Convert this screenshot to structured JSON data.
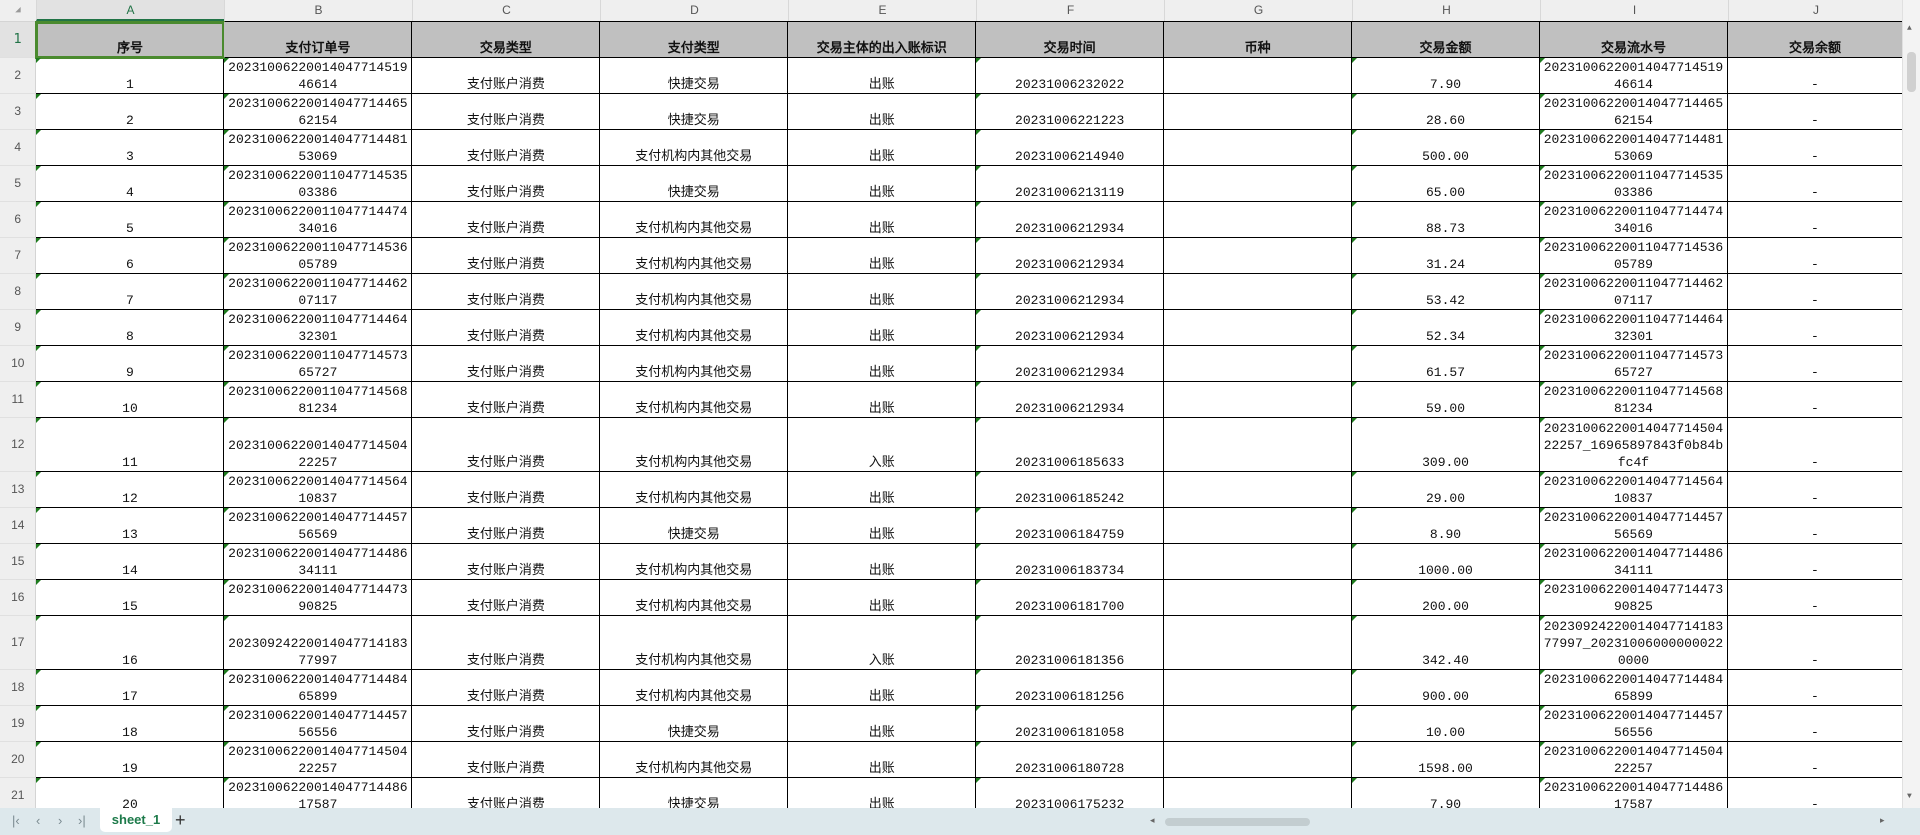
{
  "column_letters": [
    "A",
    "B",
    "C",
    "D",
    "E",
    "F",
    "G",
    "H",
    "I",
    "J"
  ],
  "row_numbers": [
    "1",
    "2",
    "3",
    "4",
    "5",
    "6",
    "7",
    "8",
    "9",
    "10",
    "11",
    "12",
    "13",
    "14",
    "15",
    "16",
    "17",
    "18",
    "19",
    "20",
    "21"
  ],
  "headers": [
    "序号",
    "支付订单号",
    "交易类型",
    "支付类型",
    "交易主体的出入账标识",
    "交易时间",
    "币种",
    "交易金额",
    "交易流水号",
    "交易余额"
  ],
  "rows": [
    [
      "1",
      "20231006220014047714519 46614",
      "支付账户消费",
      "快捷交易",
      "出账",
      "20231006232022",
      "",
      "7.90",
      "2023100622001404771451946614",
      "-"
    ],
    [
      "2",
      "2023100622001404771446562154",
      "支付账户消费",
      "快捷交易",
      "出账",
      "20231006221223",
      "",
      "28.60",
      "2023100622001404771446562154",
      "-"
    ],
    [
      "3",
      "2023100622001404771448153069",
      "支付账户消费",
      "支付机构内其他交易",
      "出账",
      "20231006214940",
      "",
      "500.00",
      "2023100622001404771448153069",
      "-"
    ],
    [
      "4",
      "2023100622001104771453503386",
      "支付账户消费",
      "快捷交易",
      "出账",
      "20231006213119",
      "",
      "65.00",
      "2023100622001104771453503386",
      "-"
    ],
    [
      "5",
      "2023100622001104771447434016",
      "支付账户消费",
      "支付机构内其他交易",
      "出账",
      "20231006212934",
      "",
      "88.73",
      "2023100622001104771447434016",
      "-"
    ],
    [
      "6",
      "2023100622001104771453605789",
      "支付账户消费",
      "支付机构内其他交易",
      "出账",
      "20231006212934",
      "",
      "31.24",
      "2023100622001104771453605789",
      "-"
    ],
    [
      "7",
      "2023100622001104771446207117",
      "支付账户消费",
      "支付机构内其他交易",
      "出账",
      "20231006212934",
      "",
      "53.42",
      "2023100622001104771446207117",
      "-"
    ],
    [
      "8",
      "2023100622001104771446432301",
      "支付账户消费",
      "支付机构内其他交易",
      "出账",
      "20231006212934",
      "",
      "52.34",
      "2023100622001104771446432301",
      "-"
    ],
    [
      "9",
      "2023100622001104771457365727",
      "支付账户消费",
      "支付机构内其他交易",
      "出账",
      "20231006212934",
      "",
      "61.57",
      "2023100622001104771457365727",
      "-"
    ],
    [
      "10",
      "2023100622001104771456881234",
      "支付账户消费",
      "支付机构内其他交易",
      "出账",
      "20231006212934",
      "",
      "59.00",
      "2023100622001104771456881234",
      "-"
    ],
    [
      "11",
      "2023100622001404771450422257",
      "支付账户消费",
      "支付机构内其他交易",
      "入账",
      "20231006185633",
      "",
      "309.00",
      "2023100622001404771450422257_16965897843f0b84bfc4f",
      "-"
    ],
    [
      "12",
      "2023100622001404771456410837",
      "支付账户消费",
      "支付机构内其他交易",
      "出账",
      "20231006185242",
      "",
      "29.00",
      "2023100622001404771456410837",
      "-"
    ],
    [
      "13",
      "2023100622001404771445756569",
      "支付账户消费",
      "快捷交易",
      "出账",
      "20231006184759",
      "",
      "8.90",
      "2023100622001404771445756569",
      "-"
    ],
    [
      "14",
      "2023100622001404771448634111",
      "支付账户消费",
      "支付机构内其他交易",
      "出账",
      "20231006183734",
      "",
      "1000.00",
      "2023100622001404771448634111",
      "-"
    ],
    [
      "15",
      "2023100622001404771447390825",
      "支付账户消费",
      "支付机构内其他交易",
      "出账",
      "20231006181700",
      "",
      "200.00",
      "2023100622001404771447390825",
      "-"
    ],
    [
      "16",
      "2023092422001404771418377997",
      "支付账户消费",
      "支付机构内其他交易",
      "入账",
      "20231006181356",
      "",
      "342.40",
      "2023092422001404771418377997_202310060000000220000",
      "-"
    ],
    [
      "17",
      "2023100622001404771448465899",
      "支付账户消费",
      "支付机构内其他交易",
      "出账",
      "20231006181256",
      "",
      "900.00",
      "2023100622001404771448465899",
      "-"
    ],
    [
      "18",
      "2023100622001404771445756556",
      "支付账户消费",
      "快捷交易",
      "出账",
      "20231006181058",
      "",
      "10.00",
      "2023100622001404771445756556",
      "-"
    ],
    [
      "19",
      "2023100622001404771450422257",
      "支付账户消费",
      "支付机构内其他交易",
      "出账",
      "20231006180728",
      "",
      "1598.00",
      "2023100622001404771450422257",
      "-"
    ],
    [
      "20",
      "2023100622001404771448617587",
      "支付账户消费",
      "快捷交易",
      "出账",
      "20231006175232",
      "",
      "7.90",
      "2023100622001404771448617587",
      "-"
    ]
  ],
  "sheet_tabs": [
    "sheet_1"
  ],
  "add_sheet_label": "+",
  "selected_cell": "A1",
  "colors": {
    "header_fill": "#c0c0c0",
    "selection": "#4a8a2e",
    "tab_bar": "#dde8ec",
    "sheet_tab_text": "#1d7a4a"
  }
}
